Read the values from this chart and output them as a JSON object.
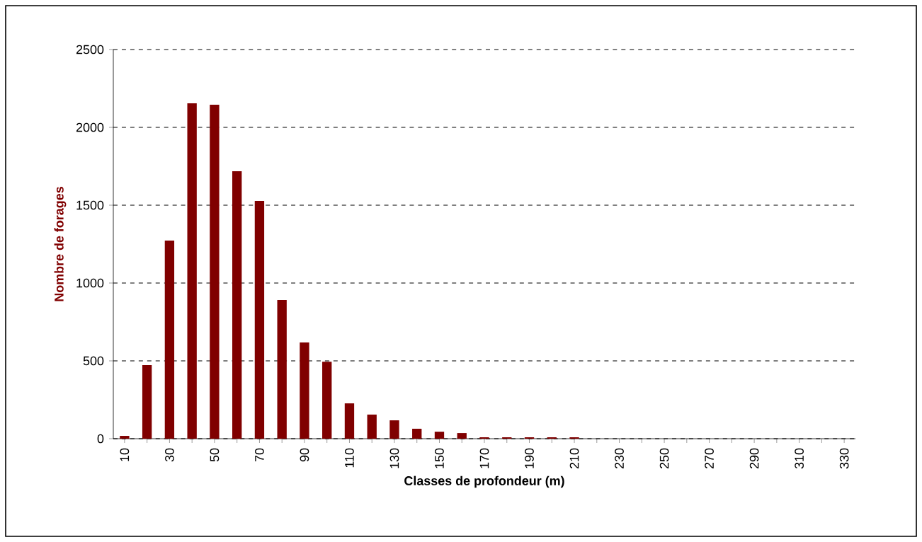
{
  "chart_data": {
    "type": "bar",
    "xlabel": "Classes de profondeur (m)",
    "ylabel": "Nombre de forages",
    "categories": [
      "10",
      null,
      "30",
      null,
      "50",
      null,
      "70",
      null,
      "90",
      null,
      "110",
      null,
      "130",
      null,
      "150",
      null,
      "170",
      null,
      "190",
      null,
      "210",
      null,
      "230",
      null,
      "250",
      null,
      "270",
      null,
      "290",
      null,
      "310",
      null,
      "330"
    ],
    "values": [
      18,
      473,
      1273,
      2155,
      2145,
      1718,
      1527,
      891,
      618,
      494,
      227,
      155,
      118,
      64,
      45,
      36,
      9,
      9,
      9,
      9,
      9,
      0,
      0,
      0,
      0,
      0,
      0,
      0,
      0,
      0,
      0,
      0,
      0
    ],
    "color": "#800000",
    "ylim": [
      0,
      2500
    ],
    "yticks": [
      0,
      500,
      1000,
      1500,
      2000,
      2500
    ],
    "grid": "y"
  }
}
